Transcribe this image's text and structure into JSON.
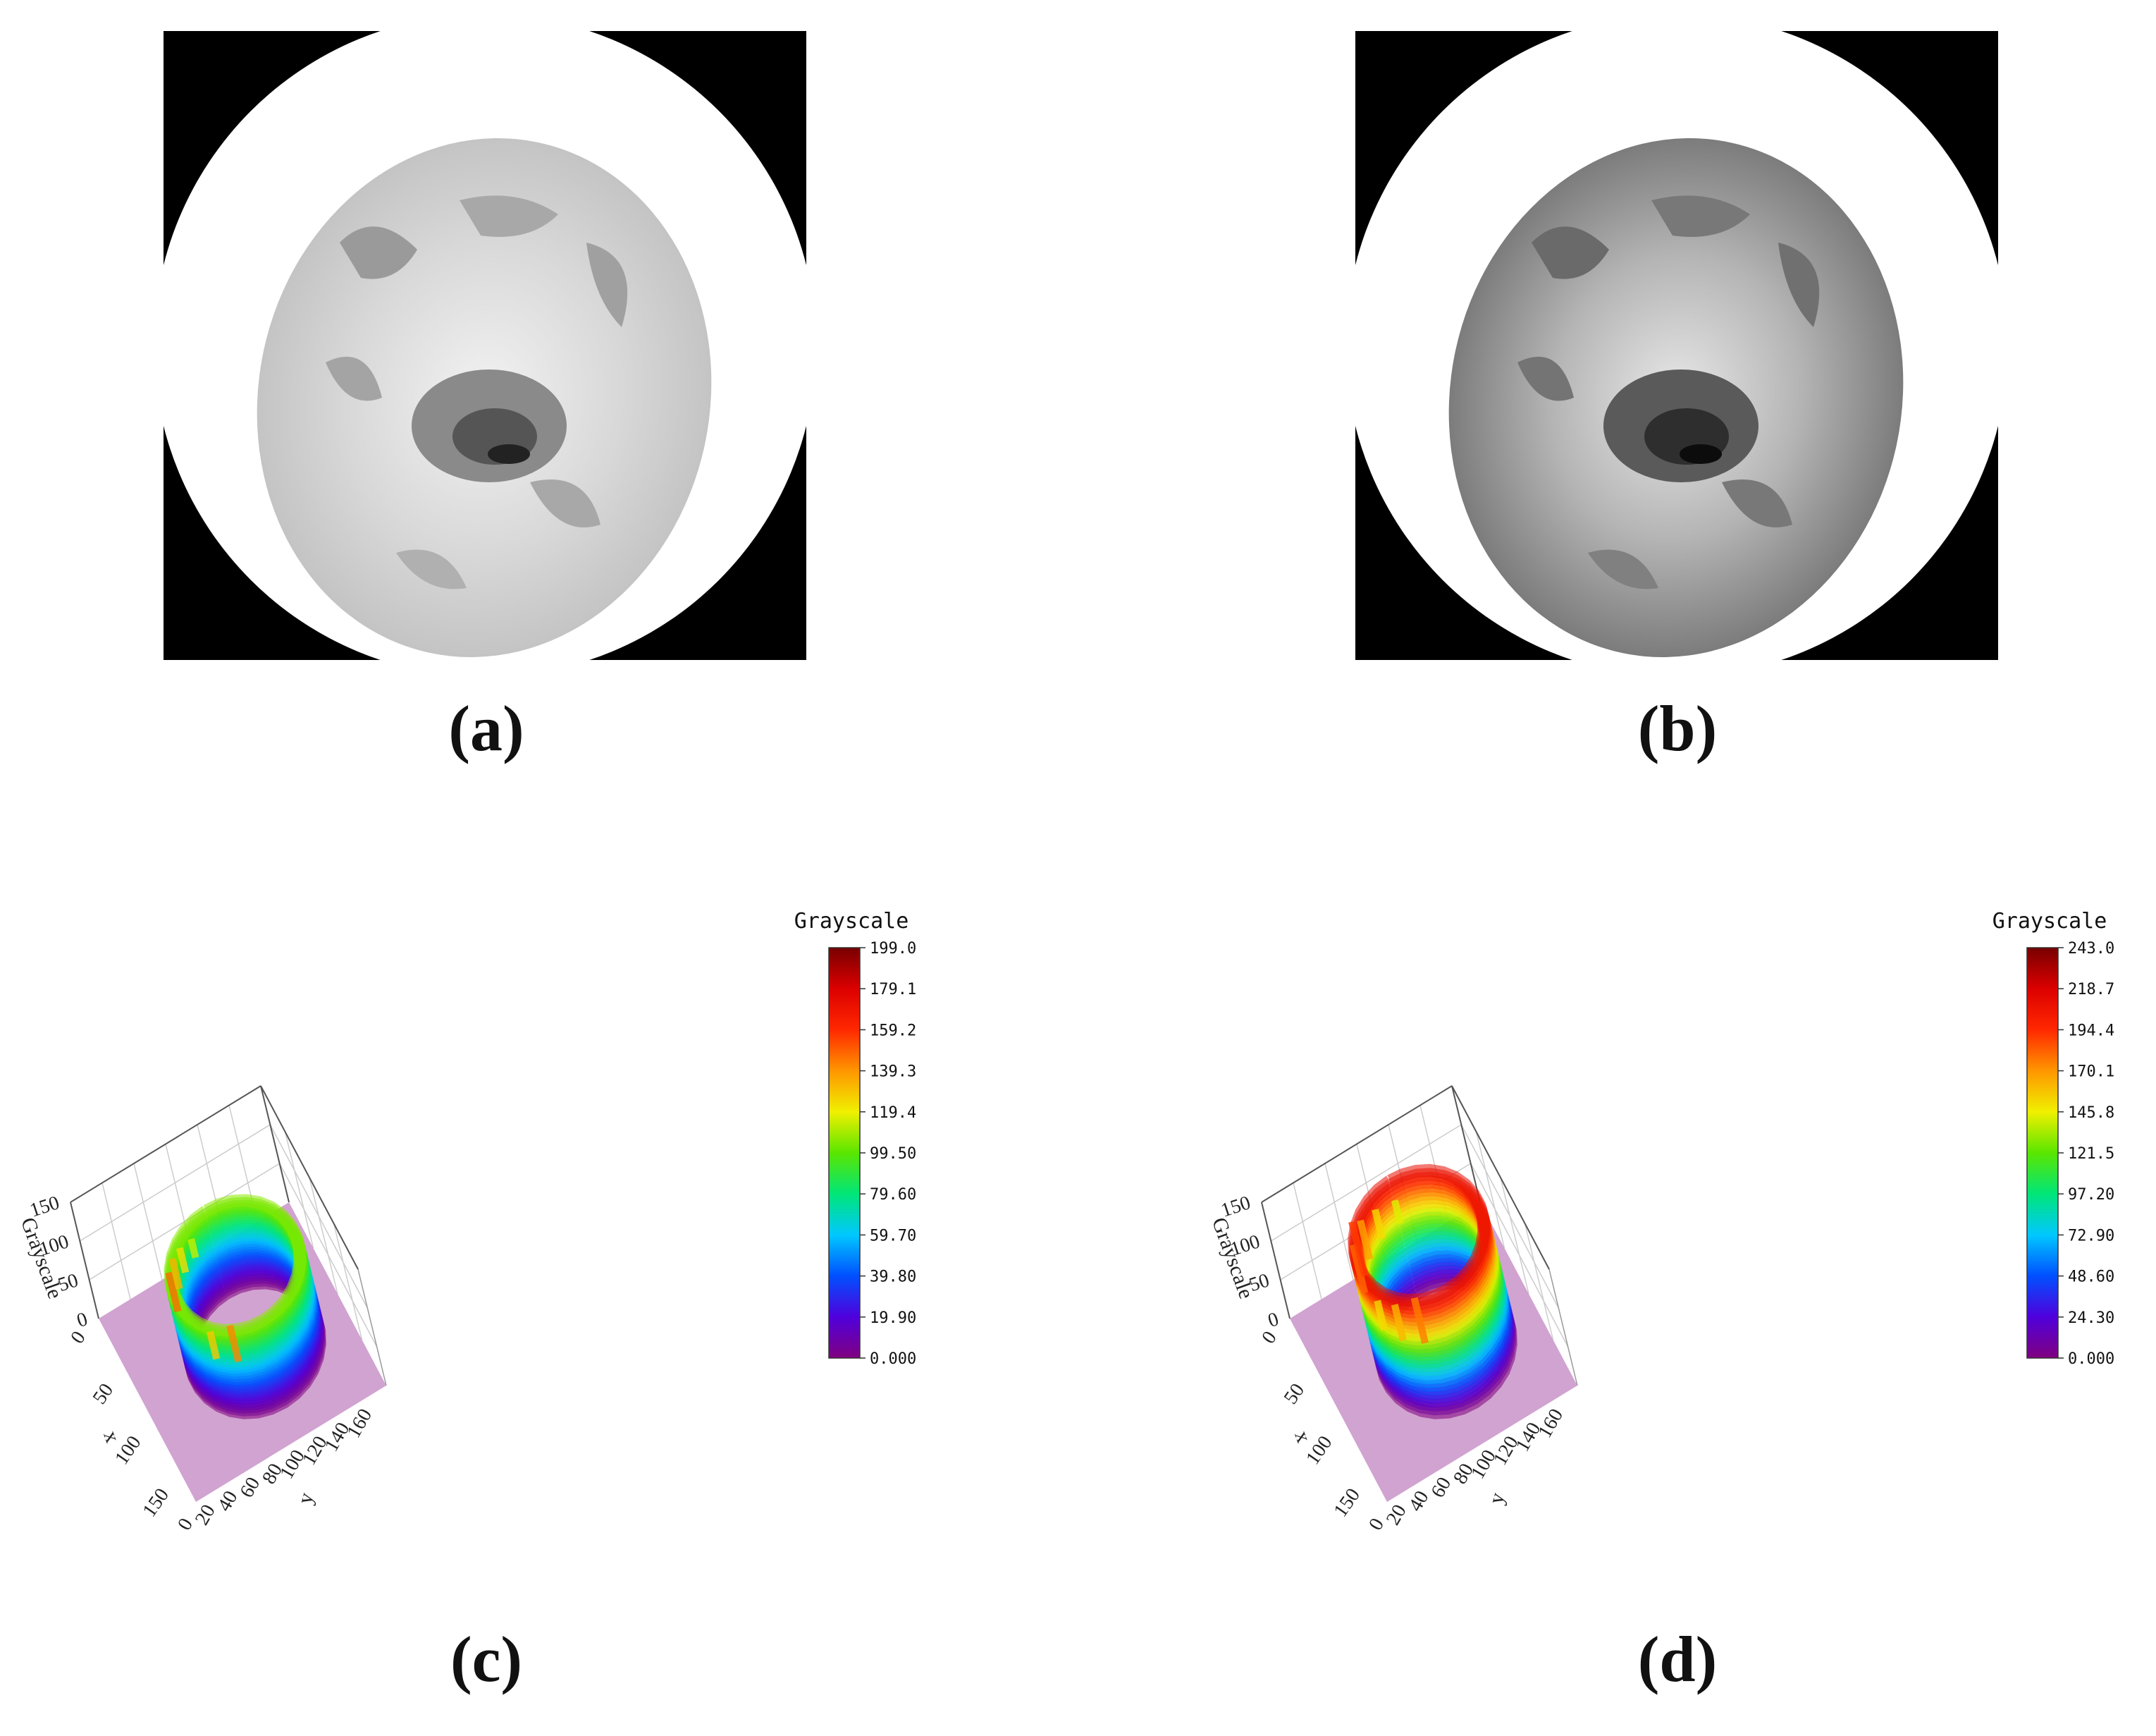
{
  "captions": {
    "a": "(a)",
    "b": "(b)",
    "c": "(c)",
    "d": "(d)"
  },
  "chart_data": [
    {
      "panel": "a",
      "type": "heatmap",
      "description": "Grayscale image",
      "max_gray": 199
    },
    {
      "panel": "b",
      "type": "heatmap",
      "description": "Grayscale image (enhanced contrast)",
      "max_gray": 243
    },
    {
      "panel": "c",
      "type": "surface",
      "zlabel": "Grayscale",
      "xlabel": "x",
      "ylabel": "y",
      "z_ticks": [
        "0",
        "50",
        "100",
        "150"
      ],
      "x_ticks": [
        "0",
        "50",
        "100",
        "150"
      ],
      "y_ticks": [
        "0",
        "20",
        "40",
        "60",
        "80",
        "100",
        "120",
        "140",
        "160"
      ],
      "colorbar": {
        "title": "Grayscale",
        "ticks": [
          "199.0",
          "179.1",
          "159.2",
          "139.3",
          "119.4",
          "99.50",
          "79.60",
          "59.70",
          "39.80",
          "19.90",
          "0.000"
        ],
        "range": [
          0,
          199
        ]
      }
    },
    {
      "panel": "d",
      "type": "surface",
      "zlabel": "Grayscale",
      "xlabel": "x",
      "ylabel": "y",
      "z_ticks": [
        "0",
        "50",
        "100",
        "150"
      ],
      "x_ticks": [
        "0",
        "50",
        "100",
        "150"
      ],
      "y_ticks": [
        "0",
        "20",
        "40",
        "60",
        "80",
        "100",
        "120",
        "140",
        "160"
      ],
      "colorbar": {
        "title": "Grayscale",
        "ticks": [
          "243.0",
          "218.7",
          "194.4",
          "170.1",
          "145.8",
          "121.5",
          "97.20",
          "72.90",
          "48.60",
          "24.30",
          "0.000"
        ],
        "range": [
          0,
          243
        ]
      }
    }
  ]
}
